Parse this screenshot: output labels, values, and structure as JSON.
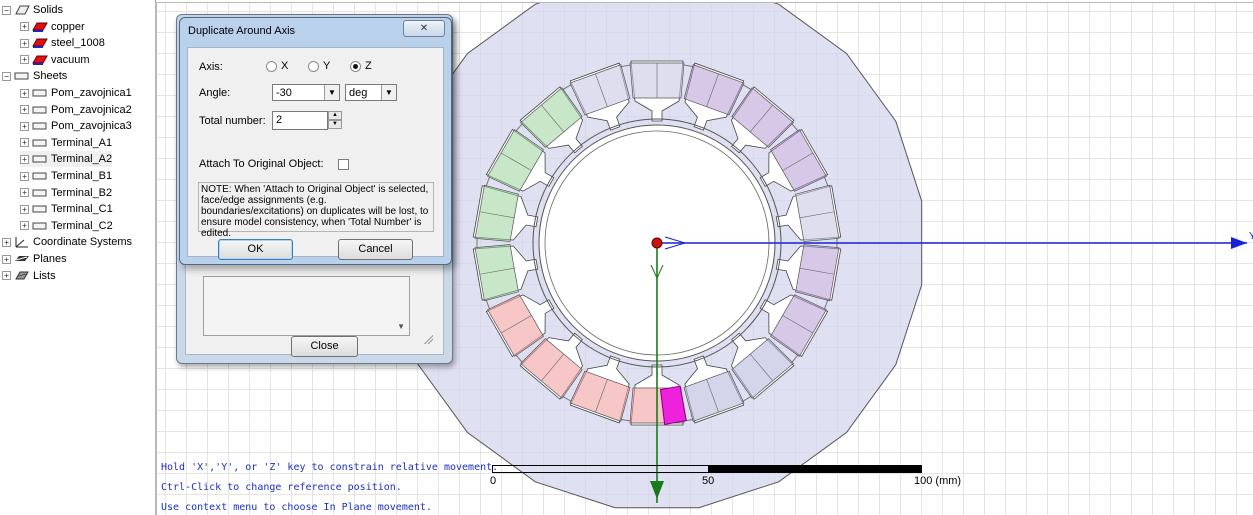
{
  "tree": {
    "items": [
      {
        "label": "Solids",
        "expander": "⊟",
        "icon": "solids"
      },
      {
        "label": "copper",
        "expander": "⊞",
        "icon": "material"
      },
      {
        "label": "steel_1008",
        "expander": "⊞",
        "icon": "material"
      },
      {
        "label": "vacuum",
        "expander": "⊞",
        "icon": "material"
      },
      {
        "label": "Sheets",
        "expander": "⊟",
        "icon": "sheet"
      },
      {
        "label": "Pom_zavojnica1",
        "expander": "⊞",
        "icon": "sheet"
      },
      {
        "label": "Pom_zavojnica2",
        "expander": "⊞",
        "icon": "sheet"
      },
      {
        "label": "Pom_zavojnica3",
        "expander": "⊞",
        "icon": "sheet"
      },
      {
        "label": "Terminal_A1",
        "expander": "⊞",
        "icon": "sheet"
      },
      {
        "label": "Terminal_A2",
        "expander": "⊞",
        "icon": "sheet"
      },
      {
        "label": "Terminal_B1",
        "expander": "⊞",
        "icon": "sheet"
      },
      {
        "label": "Terminal_B2",
        "expander": "⊞",
        "icon": "sheet"
      },
      {
        "label": "Terminal_C1",
        "expander": "⊞",
        "icon": "sheet"
      },
      {
        "label": "Terminal_C2",
        "expander": "⊞",
        "icon": "sheet"
      },
      {
        "label": "Coordinate Systems",
        "expander": "⊞",
        "icon": "coordinate-systems"
      },
      {
        "label": "Planes",
        "expander": "⊞",
        "icon": "planes"
      },
      {
        "label": "Lists",
        "expander": "⊞",
        "icon": "lists"
      }
    ]
  },
  "dialog": {
    "title": "Duplicate Around Axis",
    "close_glyph": "✕",
    "axis_label": "Axis:",
    "axis_options": [
      "X",
      "Y",
      "Z"
    ],
    "axis_selected": "Z",
    "angle_label": "Angle:",
    "angle_value": "-30",
    "angle_unit": "deg",
    "total_label": "Total number:",
    "total_value": "2",
    "attach_label": "Attach To Original Object:",
    "attach_checked": false,
    "note": "NOTE:  When 'Attach to Original Object' is selected, face/edge assignments (e.g. boundaries/excitations) on duplicates will be lost, to ensure model consistency, when 'Total Number' is edited.",
    "ok_label": "OK",
    "cancel_label": "Cancel"
  },
  "background_dialog": {
    "close_label": "Close"
  },
  "canvas": {
    "hints": [
      "Hold 'X','Y', or 'Z' key to constrain relative movement.",
      "Ctrl-Click to change reference position.",
      "Use context menu to choose In Plane movement."
    ],
    "axis_label": "Y",
    "ruler_labels": [
      "0",
      "50",
      "100 (mm)"
    ]
  },
  "colors": {
    "stator": "#d4d6ec",
    "phase_a": "#9bd39b",
    "phase_b": "#b69bd6",
    "phase_c": "#f2a0a0",
    "highlight": "#ee22dd",
    "axis_blue": "#1522d6",
    "axis_green": "#1a7a1a",
    "origin_red": "#cc1111"
  }
}
